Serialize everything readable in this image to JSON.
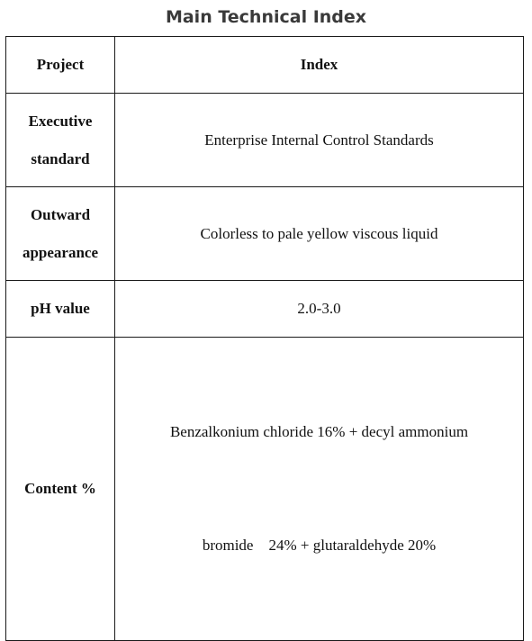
{
  "title": "Main Technical Index",
  "table": {
    "headers": {
      "project": "Project",
      "index": "Index"
    },
    "rows": [
      {
        "label_lines": [
          "Executive",
          "standard"
        ],
        "value_lines": [
          "Enterprise Internal Control Standards"
        ]
      },
      {
        "label_lines": [
          "Outward",
          "appearance"
        ],
        "value_lines": [
          "Colorless to pale yellow viscous liquid"
        ]
      },
      {
        "label_lines": [
          "pH value"
        ],
        "value_lines": [
          "2.0-3.0"
        ]
      },
      {
        "label_lines": [
          "Content %"
        ],
        "value_lines": [
          "Benzalkonium chloride 16% + decyl ammonium",
          "bromide    24% + glutaraldehyde 20%"
        ]
      }
    ]
  }
}
